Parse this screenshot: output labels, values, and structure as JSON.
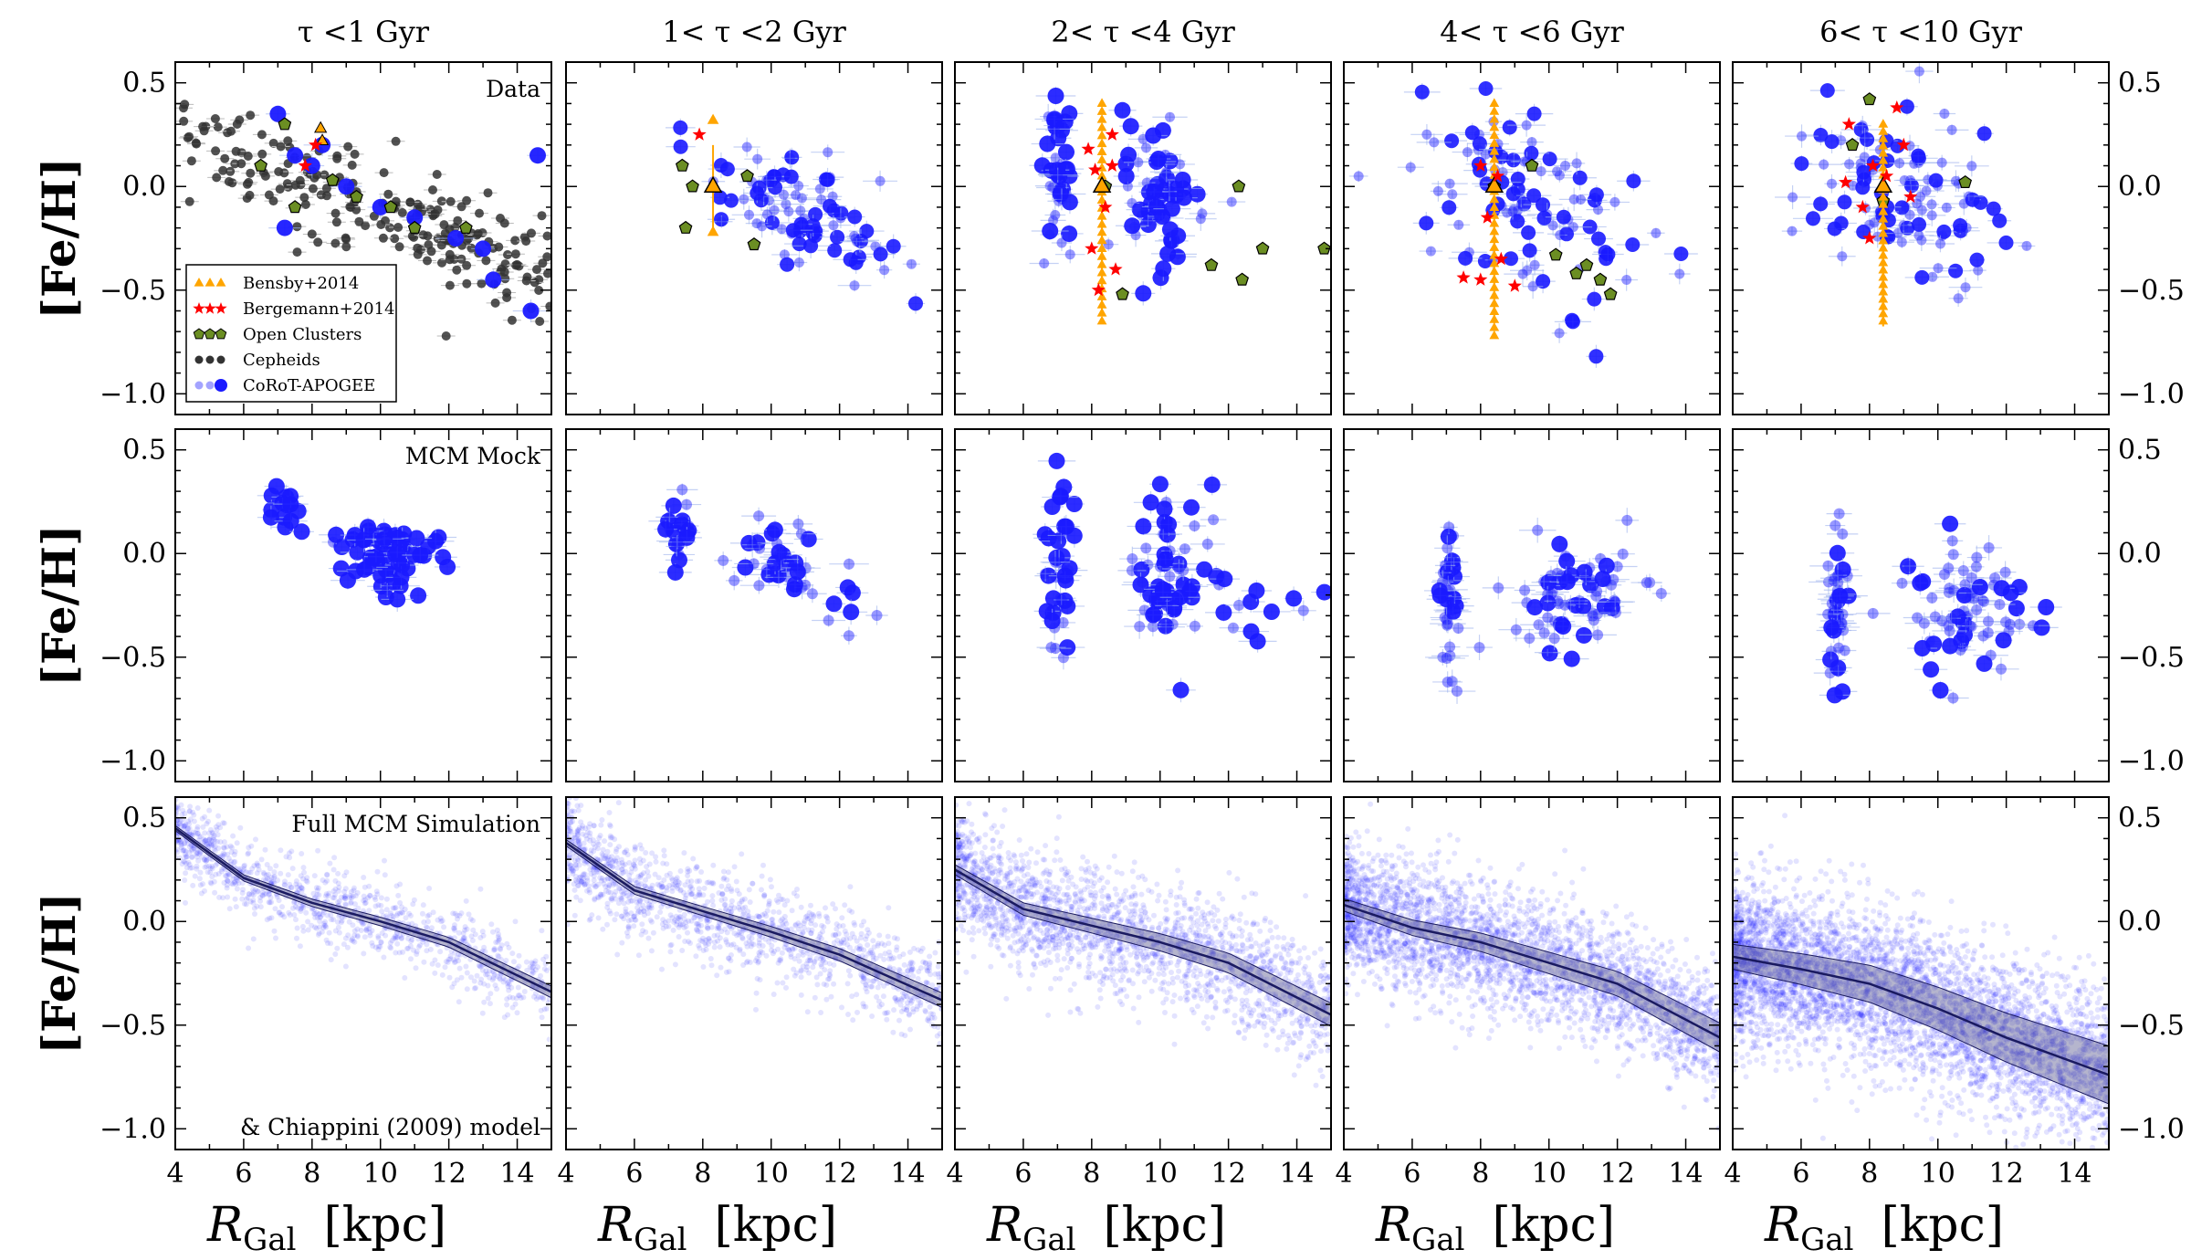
{
  "chart_data": {
    "type": "scatter",
    "layout": "3x5 grid",
    "column_titles": [
      "τ <1 Gyr",
      "1< τ <2 Gyr",
      "2< τ <4 Gyr",
      "4< τ <6 Gyr",
      "6< τ <10 Gyr"
    ],
    "row_annotations": [
      "Data",
      "MCM Mock",
      "Full MCM Simulation"
    ],
    "row3_footnote": "& Chiappini (2009) model",
    "ylabel": "[Fe/H]",
    "xlabel_symbol": "R",
    "xlabel_sub": "Gal",
    "xlabel_unit": "[kpc]",
    "xlim": [
      4,
      15
    ],
    "ylim": [
      -1.1,
      0.6
    ],
    "xticks": [
      4,
      6,
      8,
      10,
      12,
      14
    ],
    "yticks": [
      0.5,
      0.0,
      -0.5,
      -1.0
    ],
    "ytick_labels": [
      "0.5",
      "0.0",
      "−0.5",
      "−1.0"
    ],
    "legend": {
      "location": "lower-left of first panel",
      "entries": [
        {
          "label": "Bensby+2014",
          "color": "#ffa500",
          "marker": "triangle"
        },
        {
          "label": "Bergemann+2014",
          "color": "#ff0000",
          "marker": "star"
        },
        {
          "label": "Open Clusters",
          "color": "#6b8e23",
          "marker": "pentagon"
        },
        {
          "label": "Cepheids",
          "color": "#333333",
          "marker": "circle"
        },
        {
          "label": "CoRoT-APOGEE",
          "color": "#1a1aff",
          "marker": "circle"
        }
      ]
    },
    "colors": {
      "corot": "#1a1aff",
      "bensby": "#ffa500",
      "bergemann": "#ff0000",
      "open_clusters": "#6b8e23",
      "cepheids": "#333333",
      "model_line": "#1a1a60"
    },
    "model_gradients": [
      {
        "bin": "τ <1 Gyr",
        "x": [
          4,
          6,
          8,
          10,
          12,
          15
        ],
        "y": [
          0.45,
          0.21,
          0.09,
          0.0,
          -0.1,
          -0.34
        ],
        "band": 0.02
      },
      {
        "bin": "1< τ <2 Gyr",
        "x": [
          4,
          6,
          8,
          10,
          12,
          15
        ],
        "y": [
          0.38,
          0.15,
          0.05,
          -0.05,
          -0.16,
          -0.38
        ],
        "band": 0.025
      },
      {
        "bin": "2< τ <4 Gyr",
        "x": [
          4,
          6,
          8,
          10,
          12,
          15
        ],
        "y": [
          0.25,
          0.06,
          -0.02,
          -0.1,
          -0.2,
          -0.45
        ],
        "band": 0.04
      },
      {
        "bin": "4< τ <6 Gyr",
        "x": [
          4,
          6,
          8,
          10,
          12,
          15
        ],
        "y": [
          0.08,
          -0.03,
          -0.1,
          -0.2,
          -0.3,
          -0.56
        ],
        "band": 0.05
      },
      {
        "bin": "6< τ <10 Gyr",
        "x": [
          4,
          6,
          8,
          10,
          12,
          15
        ],
        "y": [
          -0.17,
          -0.23,
          -0.3,
          -0.42,
          -0.56,
          -0.74
        ],
        "band": 0.1
      }
    ],
    "data_panels": [
      {
        "bin": "τ <1 Gyr",
        "bensby": [
          {
            "x": 8.3,
            "y": 0.22
          },
          {
            "x": 8.25,
            "y": 0.28
          }
        ],
        "bergemann": [
          {
            "x": 8.1,
            "y": 0.2
          },
          {
            "x": 7.8,
            "y": 0.1
          }
        ],
        "open_clusters": [
          {
            "x": 6.5,
            "y": 0.1
          },
          {
            "x": 7.2,
            "y": 0.3
          },
          {
            "x": 8.6,
            "y": 0.03
          },
          {
            "x": 9.3,
            "y": -0.05
          },
          {
            "x": 10.3,
            "y": -0.1
          },
          {
            "x": 11.0,
            "y": -0.2
          },
          {
            "x": 12.5,
            "y": -0.2
          },
          {
            "x": 7.5,
            "y": -0.1
          }
        ],
        "cepheids_trend": {
          "slope": -0.066,
          "intercept": 0.55,
          "scatter": 0.12,
          "xmin": 4.2,
          "xmax": 15,
          "n": 220
        },
        "corot": [
          {
            "x": 7.0,
            "y": 0.35
          },
          {
            "x": 7.5,
            "y": 0.15
          },
          {
            "x": 8.0,
            "y": 0.1
          },
          {
            "x": 8.3,
            "y": 0.2
          },
          {
            "x": 7.2,
            "y": -0.2
          },
          {
            "x": 9.0,
            "y": 0.0
          },
          {
            "x": 10.0,
            "y": -0.1
          },
          {
            "x": 11.0,
            "y": -0.15
          },
          {
            "x": 12.2,
            "y": -0.25
          },
          {
            "x": 13.0,
            "y": -0.3
          },
          {
            "x": 14.6,
            "y": 0.15
          },
          {
            "x": 14.4,
            "y": -0.6
          },
          {
            "x": 13.3,
            "y": -0.45
          }
        ]
      },
      {
        "bin": "1< τ <2 Gyr",
        "bensby": [
          {
            "x": 8.3,
            "y": 0.32
          },
          {
            "x": 8.3,
            "y": 0.0
          },
          {
            "x": 8.3,
            "y": -0.22
          }
        ],
        "bergemann": [
          {
            "x": 7.9,
            "y": 0.25
          }
        ],
        "open_clusters": [
          {
            "x": 7.4,
            "y": 0.1
          },
          {
            "x": 7.7,
            "y": 0.0
          },
          {
            "x": 7.5,
            "y": -0.2
          },
          {
            "x": 9.3,
            "y": 0.05
          },
          {
            "x": 9.5,
            "y": -0.28
          }
        ],
        "corot_cloud": {
          "cx": 10.8,
          "cy": -0.1,
          "sx": 1.4,
          "sy": 0.14,
          "slope": -0.07,
          "n": 90
        }
      },
      {
        "bin": "2< τ <4 Gyr",
        "bensby_column": {
          "x": 8.3,
          "ymin": -0.65,
          "ymax": 0.4,
          "n": 28
        },
        "bergemann": [
          {
            "x": 7.9,
            "y": 0.18
          },
          {
            "x": 8.1,
            "y": 0.08
          },
          {
            "x": 8.6,
            "y": 0.1
          },
          {
            "x": 8.4,
            "y": -0.1
          },
          {
            "x": 8.0,
            "y": -0.3
          },
          {
            "x": 8.7,
            "y": -0.4
          },
          {
            "x": 8.2,
            "y": -0.5
          },
          {
            "x": 8.6,
            "y": 0.25
          }
        ],
        "open_clusters": [
          {
            "x": 12.3,
            "y": 0.0
          },
          {
            "x": 13.0,
            "y": -0.3
          },
          {
            "x": 14.8,
            "y": -0.3
          },
          {
            "x": 11.5,
            "y": -0.38
          },
          {
            "x": 12.4,
            "y": -0.45
          },
          {
            "x": 8.9,
            "y": -0.52
          },
          {
            "x": 8.4,
            "y": 0.0
          }
        ],
        "corot_clusters": [
          {
            "cx": 7.1,
            "cy": 0.05,
            "sx": 0.25,
            "sy": 0.2,
            "n": 45
          },
          {
            "cx": 10.0,
            "cy": -0.05,
            "sx": 0.6,
            "sy": 0.2,
            "n": 70
          }
        ]
      },
      {
        "bin": "4< τ <6 Gyr",
        "bensby_column": {
          "x": 8.4,
          "ymin": -0.72,
          "ymax": 0.4,
          "n": 30
        },
        "bergemann": [
          {
            "x": 8.0,
            "y": 0.1
          },
          {
            "x": 8.5,
            "y": 0.05
          },
          {
            "x": 8.2,
            "y": -0.15
          },
          {
            "x": 8.6,
            "y": -0.35
          },
          {
            "x": 7.5,
            "y": -0.44
          },
          {
            "x": 8.0,
            "y": -0.45
          },
          {
            "x": 9.0,
            "y": -0.48
          }
        ],
        "open_clusters": [
          {
            "x": 8.4,
            "y": 0.0
          },
          {
            "x": 9.5,
            "y": 0.1
          },
          {
            "x": 10.2,
            "y": -0.33
          },
          {
            "x": 10.8,
            "y": -0.42
          },
          {
            "x": 11.1,
            "y": -0.38
          },
          {
            "x": 11.8,
            "y": -0.52
          },
          {
            "x": 11.5,
            "y": -0.45
          }
        ],
        "corot_cloud": {
          "cx": 9.2,
          "cy": -0.05,
          "sx": 1.6,
          "sy": 0.22,
          "slope": -0.05,
          "n": 110
        }
      },
      {
        "bin": "6< τ <10 Gyr",
        "bensby_column": {
          "x": 8.4,
          "ymin": -0.65,
          "ymax": 0.3,
          "n": 28
        },
        "bergemann": [
          {
            "x": 7.4,
            "y": 0.3
          },
          {
            "x": 8.1,
            "y": 0.1
          },
          {
            "x": 8.5,
            "y": 0.05
          },
          {
            "x": 7.8,
            "y": -0.1
          },
          {
            "x": 9.2,
            "y": -0.05
          },
          {
            "x": 8.0,
            "y": -0.25
          },
          {
            "x": 8.8,
            "y": 0.38
          },
          {
            "x": 9.0,
            "y": 0.2
          },
          {
            "x": 7.3,
            "y": 0.02
          }
        ],
        "open_clusters": [
          {
            "x": 8.0,
            "y": 0.42
          },
          {
            "x": 7.5,
            "y": 0.2
          },
          {
            "x": 8.4,
            "y": -0.07
          },
          {
            "x": 10.8,
            "y": 0.02
          }
        ],
        "corot_cloud": {
          "cx": 9.0,
          "cy": -0.05,
          "sx": 1.6,
          "sy": 0.2,
          "slope": -0.03,
          "n": 110
        }
      }
    ],
    "mock_panels": [
      {
        "bin": "τ <1 Gyr",
        "clusters": [
          {
            "cx": 7.2,
            "cy": 0.22,
            "sx": 0.3,
            "sy": 0.08,
            "n": 14
          },
          {
            "cx": 10.3,
            "cy": 0.0,
            "sx": 0.8,
            "sy": 0.08,
            "n": 70
          }
        ],
        "big": true
      },
      {
        "bin": "1< τ <2 Gyr",
        "clusters": [
          {
            "cx": 7.2,
            "cy": 0.12,
            "sx": 0.25,
            "sy": 0.1,
            "n": 22
          },
          {
            "cx": 10.2,
            "cy": -0.02,
            "sx": 0.6,
            "sy": 0.1,
            "n": 40
          },
          {
            "cx": 12.5,
            "cy": -0.18,
            "sx": 0.6,
            "sy": 0.1,
            "n": 8
          }
        ]
      },
      {
        "bin": "2< τ <4 Gyr",
        "clusters": [
          {
            "cx": 7.1,
            "cy": -0.1,
            "sx": 0.2,
            "sy": 0.22,
            "n": 40
          },
          {
            "cx": 10.2,
            "cy": -0.08,
            "sx": 0.7,
            "sy": 0.18,
            "n": 70
          },
          {
            "cx": 13.0,
            "cy": -0.3,
            "sx": 0.9,
            "sy": 0.1,
            "n": 10
          }
        ]
      },
      {
        "bin": "4< τ <6 Gyr",
        "clusters": [
          {
            "cx": 7.1,
            "cy": -0.15,
            "sx": 0.15,
            "sy": 0.2,
            "n": 40
          },
          {
            "cx": 10.7,
            "cy": -0.18,
            "sx": 0.9,
            "sy": 0.15,
            "n": 75
          }
        ]
      },
      {
        "bin": "6< τ <10 Gyr",
        "clusters": [
          {
            "cx": 7.0,
            "cy": -0.2,
            "sx": 0.15,
            "sy": 0.22,
            "n": 45
          },
          {
            "cx": 10.8,
            "cy": -0.25,
            "sx": 0.9,
            "sy": 0.16,
            "n": 80
          }
        ]
      }
    ],
    "simulation_density": [
      0.8,
      1.0,
      1.5,
      2.2,
      3.2
    ],
    "simulation_scatter": [
      0.1,
      0.12,
      0.15,
      0.16,
      0.2
    ]
  }
}
